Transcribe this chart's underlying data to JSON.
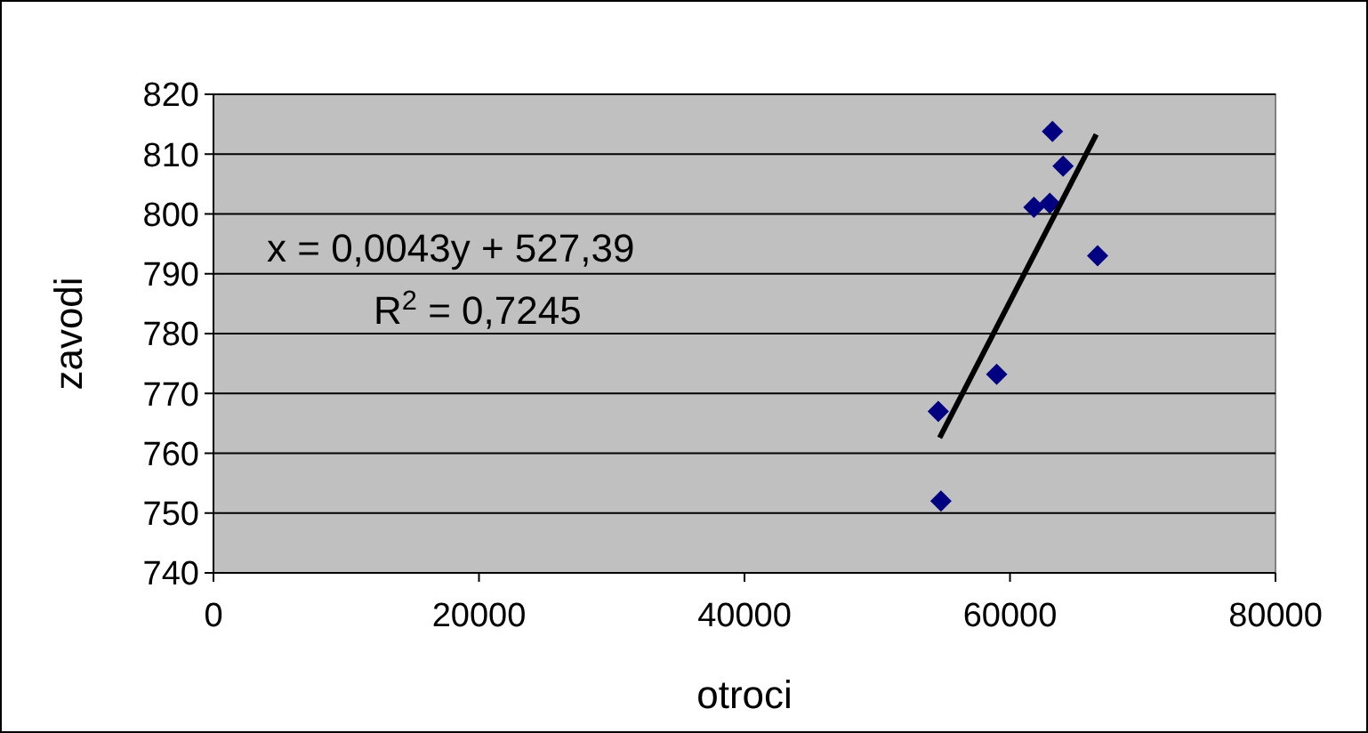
{
  "chart_data": {
    "type": "scatter",
    "xlabel": "otroci",
    "ylabel": "zavodi",
    "xlim": [
      0,
      80000
    ],
    "xticks": [
      0,
      20000,
      40000,
      60000,
      80000
    ],
    "ylim": [
      740,
      820
    ],
    "yticks": [
      740,
      750,
      760,
      770,
      780,
      790,
      800,
      810,
      820
    ],
    "grid": "y",
    "marker": "diamond",
    "annotations": [
      "x = 0,0043y + 527,39",
      "R$^{2}$ = 0,7245"
    ],
    "series": [
      {
        "color": "#000080",
        "x": [
          54600,
          54800,
          59000,
          63200,
          64000,
          61800,
          63000,
          66600
        ],
        "values": [
          767,
          752,
          773.2,
          813.8,
          808,
          801.1,
          801.8,
          793
        ]
      },
      {
        "type": "line",
        "color": "#000000",
        "marker": "none",
        "x": [
          54700,
          66500
        ],
        "values": [
          762.6,
          813.3
        ]
      }
    ]
  }
}
